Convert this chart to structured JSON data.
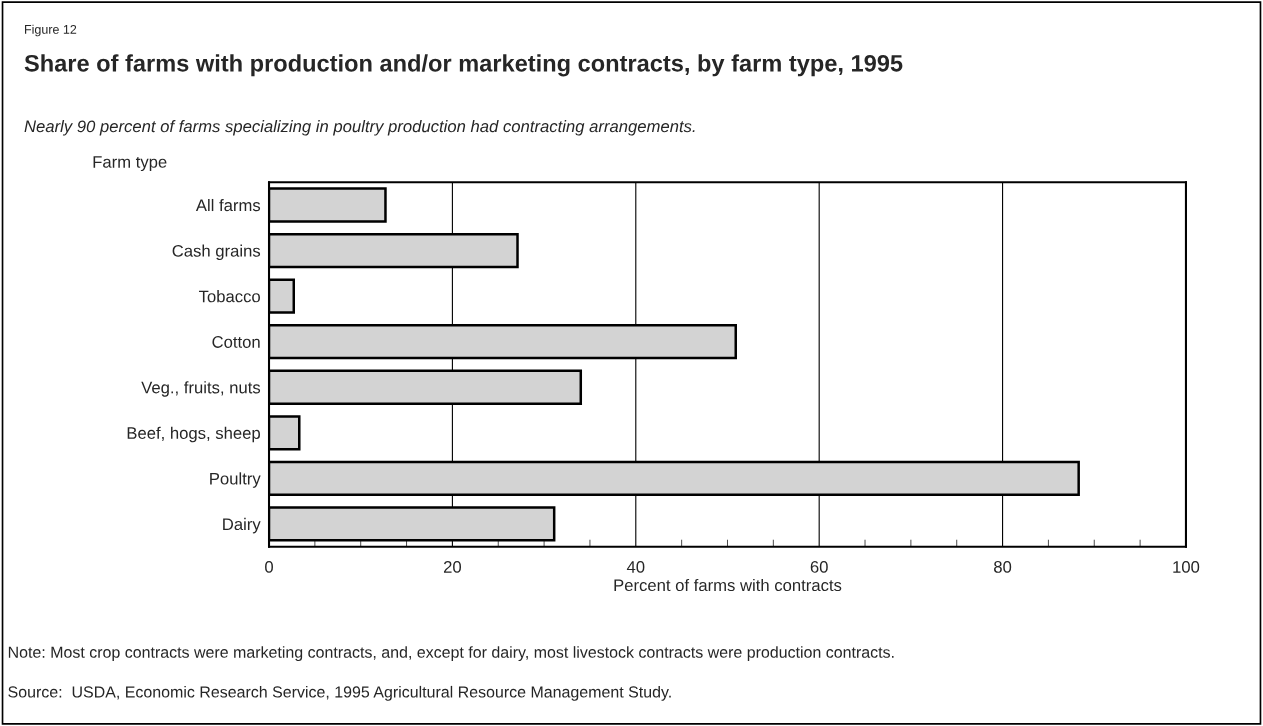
{
  "chart_data": {
    "type": "bar",
    "orientation": "horizontal",
    "title": "Share of farms with production and/or marketing contracts, by farm type, 1995",
    "subtitle": "Nearly 90 percent of farms specializing in poultry production had contracting arrangements.",
    "ylabel": "Farm type",
    "xlabel": "Percent of farms with contracts",
    "categories": [
      "All farms",
      "Cash grains",
      "Tobacco",
      "Cotton",
      "Veg., fruits, nuts",
      "Beef, hogs, sheep",
      "Poultry",
      "Dairy"
    ],
    "values": [
      12.7,
      27.1,
      2.7,
      50.9,
      34.0,
      3.3,
      88.3,
      31.1
    ],
    "color": "#d3d3d3",
    "xlim": [
      0,
      100
    ],
    "xticks": [
      0,
      {
        "value": 5,
        "label": null
      },
      {
        "value": 10,
        "label": null
      },
      {
        "value": 15,
        "label": null
      },
      20,
      {
        "value": 25,
        "label": null
      },
      {
        "value": 30,
        "label": null
      },
      {
        "value": 35,
        "label": null
      },
      40,
      {
        "value": 45,
        "label": null
      },
      {
        "value": 50,
        "label": null
      },
      {
        "value": 55,
        "label": null
      },
      60,
      {
        "value": 65,
        "label": null
      },
      {
        "value": 70,
        "label": null
      },
      {
        "value": 75,
        "label": null
      },
      80,
      {
        "value": 85,
        "label": null
      },
      {
        "value": 90,
        "label": null
      },
      {
        "value": 95,
        "label": null
      },
      100
    ],
    "grid": "x",
    "annotations": [
      "Figure 12",
      "Note: Most crop contracts were marketing contracts, and, except for dairy, most livestock contracts were production contracts.",
      "Source:  USDA, Economic Research Service, 1995 Agricultural Resource Management Study."
    ]
  }
}
